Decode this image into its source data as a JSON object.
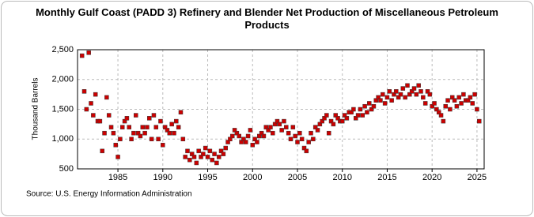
{
  "chart_data": {
    "type": "scatter",
    "title": "Monthly Gulf Coast (PADD 3) Refinery and Blender Net Production of Miscellaneous Petroleum Products",
    "y_label": "Thousand Barrels",
    "source": "Source: U.S. Energy Information Administration",
    "color": "#cc0000",
    "grid": true,
    "xlim": [
      1980.5,
      2025.8
    ],
    "xticks": [
      1985,
      1990,
      1995,
      2000,
      2005,
      2010,
      2015,
      2020,
      2025
    ],
    "ylim": [
      500,
      2500
    ],
    "yticks": [
      500,
      {
        "value": 1000,
        "label": "1,000"
      },
      {
        "value": 1500,
        "label": "1,500"
      },
      {
        "value": 2000,
        "label": "2,000"
      },
      {
        "value": 2500,
        "label": "2,500"
      }
    ],
    "x": [
      1981,
      1981.25,
      1981.5,
      1981.75,
      1982,
      1982.25,
      1982.5,
      1982.75,
      1983,
      1983.25,
      1983.5,
      1983.75,
      1984,
      1984.25,
      1984.5,
      1984.75,
      1985,
      1985.25,
      1985.5,
      1985.75,
      1986,
      1986.25,
      1986.5,
      1986.75,
      1987,
      1987.25,
      1987.5,
      1987.75,
      1988,
      1988.25,
      1988.5,
      1988.75,
      1989,
      1989.25,
      1989.5,
      1989.75,
      1990,
      1990.25,
      1990.5,
      1990.75,
      1991,
      1991.25,
      1991.5,
      1991.75,
      1992,
      1992.25,
      1992.5,
      1992.75,
      1993,
      1993.25,
      1993.5,
      1993.75,
      1994,
      1994.25,
      1994.5,
      1994.75,
      1995,
      1995.25,
      1995.5,
      1995.75,
      1996,
      1996.25,
      1996.5,
      1996.75,
      1997,
      1997.25,
      1997.5,
      1997.75,
      1998,
      1998.25,
      1998.5,
      1998.75,
      1999,
      1999.25,
      1999.5,
      1999.75,
      2000,
      2000.25,
      2000.5,
      2000.75,
      2001,
      2001.25,
      2001.5,
      2001.75,
      2002,
      2002.25,
      2002.5,
      2002.75,
      2003,
      2003.25,
      2003.5,
      2003.75,
      2004,
      2004.25,
      2004.5,
      2004.75,
      2005,
      2005.25,
      2005.5,
      2005.75,
      2006,
      2006.25,
      2006.5,
      2006.75,
      2007,
      2007.25,
      2007.5,
      2007.75,
      2008,
      2008.25,
      2008.5,
      2008.75,
      2009,
      2009.25,
      2009.5,
      2009.75,
      2010,
      2010.25,
      2010.5,
      2010.75,
      2011,
      2011.25,
      2011.5,
      2011.75,
      2012,
      2012.25,
      2012.5,
      2012.75,
      2013,
      2013.25,
      2013.5,
      2013.75,
      2014,
      2014.25,
      2014.5,
      2014.75,
      2015,
      2015.25,
      2015.5,
      2015.75,
      2016,
      2016.25,
      2016.5,
      2016.75,
      2017,
      2017.25,
      2017.5,
      2017.75,
      2018,
      2018.25,
      2018.5,
      2018.75,
      2019,
      2019.25,
      2019.5,
      2019.75,
      2020,
      2020.25,
      2020.5,
      2020.75,
      2021,
      2021.25,
      2021.5,
      2021.75,
      2022,
      2022.25,
      2022.5,
      2022.75,
      2023,
      2023.25,
      2023.5,
      2023.75,
      2024,
      2024.25,
      2024.5,
      2024.75,
      2025,
      2025.25
    ],
    "values": [
      2400,
      1800,
      1500,
      2450,
      1600,
      1400,
      1750,
      1300,
      1300,
      800,
      1100,
      1700,
      1400,
      1200,
      1100,
      900,
      700,
      1000,
      1200,
      1300,
      1350,
      1200,
      1000,
      1100,
      1400,
      1100,
      1050,
      1200,
      1100,
      1200,
      1350,
      1000,
      1400,
      1200,
      1000,
      1300,
      900,
      1200,
      1150,
      1100,
      1250,
      1100,
      1300,
      1200,
      1450,
      1000,
      700,
      800,
      650,
      750,
      700,
      600,
      800,
      700,
      750,
      850,
      700,
      800,
      650,
      750,
      600,
      700,
      800,
      750,
      850,
      950,
      1000,
      1050,
      1150,
      1100,
      1050,
      950,
      1000,
      950,
      1050,
      1150,
      900,
      1000,
      950,
      1050,
      1100,
      1050,
      1200,
      1150,
      1200,
      1100,
      1250,
      1300,
      1250,
      1150,
      1300,
      1200,
      1100,
      1000,
      1200,
      1050,
      950,
      1100,
      1000,
      850,
      800,
      950,
      1100,
      1000,
      1200,
      1150,
      1250,
      1300,
      1350,
      1400,
      1100,
      1300,
      1250,
      1400,
      1350,
      1300,
      1300,
      1400,
      1350,
      1450,
      1450,
      1500,
      1350,
      1400,
      1500,
      1400,
      1550,
      1450,
      1600,
      1500,
      1550,
      1650,
      1700,
      1650,
      1750,
      1600,
      1700,
      1800,
      1650,
      1750,
      1800,
      1700,
      1750,
      1850,
      1700,
      1900,
      1750,
      1800,
      1850,
      1750,
      1900,
      1800,
      1700,
      1600,
      1800,
      1750,
      1550,
      1600,
      1500,
      1450,
      1400,
      1300,
      1550,
      1650,
      1500,
      1700,
      1650,
      1550,
      1700,
      1600,
      1750,
      1650,
      1650,
      1700,
      1600,
      1750,
      1500,
      1300
    ]
  }
}
